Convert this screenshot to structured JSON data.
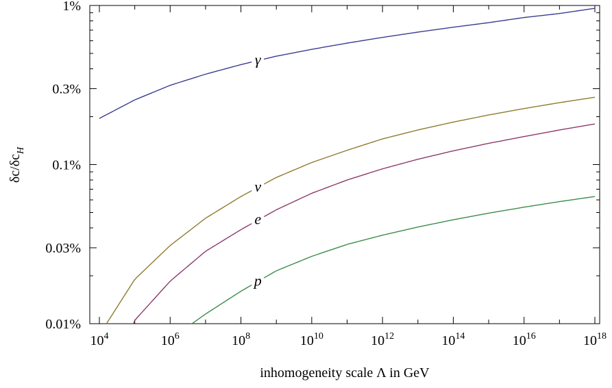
{
  "chart_data": {
    "type": "line",
    "xlabel": "inhomogeneity scale Λ in GeV",
    "ylabel_main": "δc/δc",
    "ylabel_sub": "H",
    "x_scale": "log",
    "y_scale": "log",
    "xlim": [
      10000.0,
      1e+18
    ],
    "ylim": [
      0.01,
      1
    ],
    "grid": false,
    "x_ticks": [
      {
        "value": 10000.0,
        "base": "10",
        "exp": "4"
      },
      {
        "value": 1000000.0,
        "base": "10",
        "exp": "6"
      },
      {
        "value": 100000000.0,
        "base": "10",
        "exp": "8"
      },
      {
        "value": 10000000000.0,
        "base": "10",
        "exp": "10"
      },
      {
        "value": 1000000000000.0,
        "base": "10",
        "exp": "12"
      },
      {
        "value": 100000000000000.0,
        "base": "10",
        "exp": "14"
      },
      {
        "value": 1e+16,
        "base": "10",
        "exp": "16"
      },
      {
        "value": 1e+18,
        "base": "10",
        "exp": "18"
      }
    ],
    "y_ticks": [
      {
        "value": 0.01,
        "label": "0.01%"
      },
      {
        "value": 0.03,
        "label": "0.03%"
      },
      {
        "value": 0.1,
        "label": "0.1%"
      },
      {
        "value": 0.3,
        "label": "0.3%"
      },
      {
        "value": 1,
        "label": "1%"
      }
    ],
    "series": [
      {
        "name": "γ",
        "color": "#3b3b8f",
        "x": [
          10000.0,
          100000.0,
          1000000.0,
          10000000.0,
          100000000.0,
          1000000000.0,
          10000000000.0,
          100000000000.0,
          1000000000000.0,
          10000000000000.0,
          100000000000000.0,
          1000000000000000.0,
          1e+16,
          1e+17,
          1e+18
        ],
        "y": [
          0.195,
          0.255,
          0.315,
          0.37,
          0.425,
          0.48,
          0.53,
          0.58,
          0.63,
          0.68,
          0.73,
          0.78,
          0.84,
          0.89,
          0.96
        ],
        "label_x": 300000000.0
      },
      {
        "name": "ν",
        "color": "#8f7a2e",
        "x": [
          10000.0,
          100000.0,
          1000000.0,
          10000000.0,
          100000000.0,
          1000000000.0,
          10000000000.0,
          100000000000.0,
          1000000000000.0,
          10000000000000.0,
          100000000000000.0,
          1000000000000000.0,
          1e+16,
          1e+17,
          1e+18
        ],
        "y": [
          0.0085,
          0.019,
          0.031,
          0.046,
          0.063,
          0.083,
          0.103,
          0.123,
          0.145,
          0.165,
          0.185,
          0.205,
          0.225,
          0.245,
          0.265
        ],
        "label_x": 300000000.0
      },
      {
        "name": "e",
        "color": "#8c3a6a",
        "x": [
          85000.0,
          100000.0,
          1000000.0,
          10000000.0,
          100000000.0,
          1000000000.0,
          10000000000.0,
          100000000000.0,
          1000000000000.0,
          10000000000000.0,
          100000000000000.0,
          1000000000000000.0,
          1e+16,
          1e+17,
          1e+18
        ],
        "y": [
          0.0095,
          0.0105,
          0.0185,
          0.0285,
          0.039,
          0.052,
          0.066,
          0.08,
          0.094,
          0.108,
          0.122,
          0.136,
          0.15,
          0.165,
          0.18
        ],
        "label_x": 300000000.0
      },
      {
        "name": "p",
        "color": "#3b8c4a",
        "x": [
          3000000.0,
          10000000.0,
          100000000.0,
          1000000000.0,
          10000000000.0,
          100000000000.0,
          1000000000000.0,
          10000000000000.0,
          100000000000000.0,
          1000000000000000.0,
          1e+16,
          1e+17,
          1e+18
        ],
        "y": [
          0.0095,
          0.0115,
          0.016,
          0.0215,
          0.0265,
          0.0315,
          0.036,
          0.0405,
          0.045,
          0.0495,
          0.054,
          0.0585,
          0.063
        ],
        "label_x": 300000000.0
      }
    ]
  }
}
